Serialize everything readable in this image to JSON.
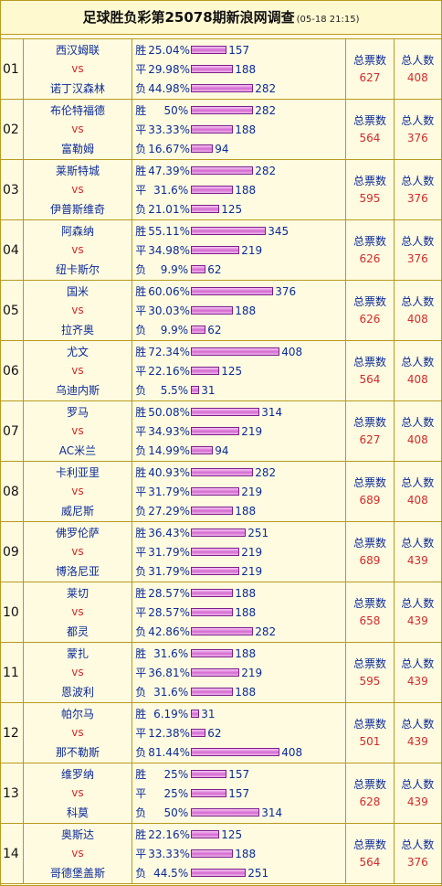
{
  "header": {
    "title": "足球胜负彩第25078期新浪网调查",
    "stamp": "(05-18 21:15)"
  },
  "labels": {
    "vs": "vs",
    "total_votes": "总票数",
    "total_people": "总人数",
    "win": "胜",
    "draw": "平",
    "loss": "负"
  },
  "colors": {
    "border": "#b89a1e",
    "team_text": "#0a2a9a",
    "vs_text": "#d42a2a",
    "bar": "#d46ad0",
    "row_bg": "#fffbe0"
  },
  "matches": [
    {
      "no": "01",
      "home": "西汉姆联",
      "away": "诺丁汉森林",
      "win_pct": "25.04%",
      "win_cnt": "157",
      "draw_pct": "29.98%",
      "draw_cnt": "188",
      "loss_pct": "44.98%",
      "loss_cnt": "282",
      "total_votes": "627",
      "total_people": "408"
    },
    {
      "no": "02",
      "home": "布伦特福德",
      "away": "富勒姆",
      "win_pct": "50%",
      "win_cnt": "282",
      "draw_pct": "33.33%",
      "draw_cnt": "188",
      "loss_pct": "16.67%",
      "loss_cnt": "94",
      "total_votes": "564",
      "total_people": "376"
    },
    {
      "no": "03",
      "home": "莱斯特城",
      "away": "伊普斯维奇",
      "win_pct": "47.39%",
      "win_cnt": "282",
      "draw_pct": "31.6%",
      "draw_cnt": "188",
      "loss_pct": "21.01%",
      "loss_cnt": "125",
      "total_votes": "595",
      "total_people": "376"
    },
    {
      "no": "04",
      "home": "阿森纳",
      "away": "纽卡斯尔",
      "win_pct": "55.11%",
      "win_cnt": "345",
      "draw_pct": "34.98%",
      "draw_cnt": "219",
      "loss_pct": "9.9%",
      "loss_cnt": "62",
      "total_votes": "626",
      "total_people": "376"
    },
    {
      "no": "05",
      "home": "国米",
      "away": "拉齐奥",
      "win_pct": "60.06%",
      "win_cnt": "376",
      "draw_pct": "30.03%",
      "draw_cnt": "188",
      "loss_pct": "9.9%",
      "loss_cnt": "62",
      "total_votes": "626",
      "total_people": "408"
    },
    {
      "no": "06",
      "home": "尤文",
      "away": "乌迪内斯",
      "win_pct": "72.34%",
      "win_cnt": "408",
      "draw_pct": "22.16%",
      "draw_cnt": "125",
      "loss_pct": "5.5%",
      "loss_cnt": "31",
      "total_votes": "564",
      "total_people": "408"
    },
    {
      "no": "07",
      "home": "罗马",
      "away": "AC米兰",
      "win_pct": "50.08%",
      "win_cnt": "314",
      "draw_pct": "34.93%",
      "draw_cnt": "219",
      "loss_pct": "14.99%",
      "loss_cnt": "94",
      "total_votes": "627",
      "total_people": "408"
    },
    {
      "no": "08",
      "home": "卡利亚里",
      "away": "威尼斯",
      "win_pct": "40.93%",
      "win_cnt": "282",
      "draw_pct": "31.79%",
      "draw_cnt": "219",
      "loss_pct": "27.29%",
      "loss_cnt": "188",
      "total_votes": "689",
      "total_people": "408"
    },
    {
      "no": "09",
      "home": "佛罗伦萨",
      "away": "博洛尼亚",
      "win_pct": "36.43%",
      "win_cnt": "251",
      "draw_pct": "31.79%",
      "draw_cnt": "219",
      "loss_pct": "31.79%",
      "loss_cnt": "219",
      "total_votes": "689",
      "total_people": "439"
    },
    {
      "no": "10",
      "home": "莱切",
      "away": "都灵",
      "win_pct": "28.57%",
      "win_cnt": "188",
      "draw_pct": "28.57%",
      "draw_cnt": "188",
      "loss_pct": "42.86%",
      "loss_cnt": "282",
      "total_votes": "658",
      "total_people": "439"
    },
    {
      "no": "11",
      "home": "蒙扎",
      "away": "恩波利",
      "win_pct": "31.6%",
      "win_cnt": "188",
      "draw_pct": "36.81%",
      "draw_cnt": "219",
      "loss_pct": "31.6%",
      "loss_cnt": "188",
      "total_votes": "595",
      "total_people": "439"
    },
    {
      "no": "12",
      "home": "帕尔马",
      "away": "那不勒斯",
      "win_pct": "6.19%",
      "win_cnt": "31",
      "draw_pct": "12.38%",
      "draw_cnt": "62",
      "loss_pct": "81.44%",
      "loss_cnt": "408",
      "total_votes": "501",
      "total_people": "439"
    },
    {
      "no": "13",
      "home": "维罗纳",
      "away": "科莫",
      "win_pct": "25%",
      "win_cnt": "157",
      "draw_pct": "25%",
      "draw_cnt": "157",
      "loss_pct": "50%",
      "loss_cnt": "314",
      "total_votes": "628",
      "total_people": "439"
    },
    {
      "no": "14",
      "home": "奥斯达",
      "away": "哥德堡盖斯",
      "win_pct": "22.16%",
      "win_cnt": "125",
      "draw_pct": "33.33%",
      "draw_cnt": "188",
      "loss_pct": "44.5%",
      "loss_cnt": "251",
      "total_votes": "564",
      "total_people": "376"
    }
  ]
}
